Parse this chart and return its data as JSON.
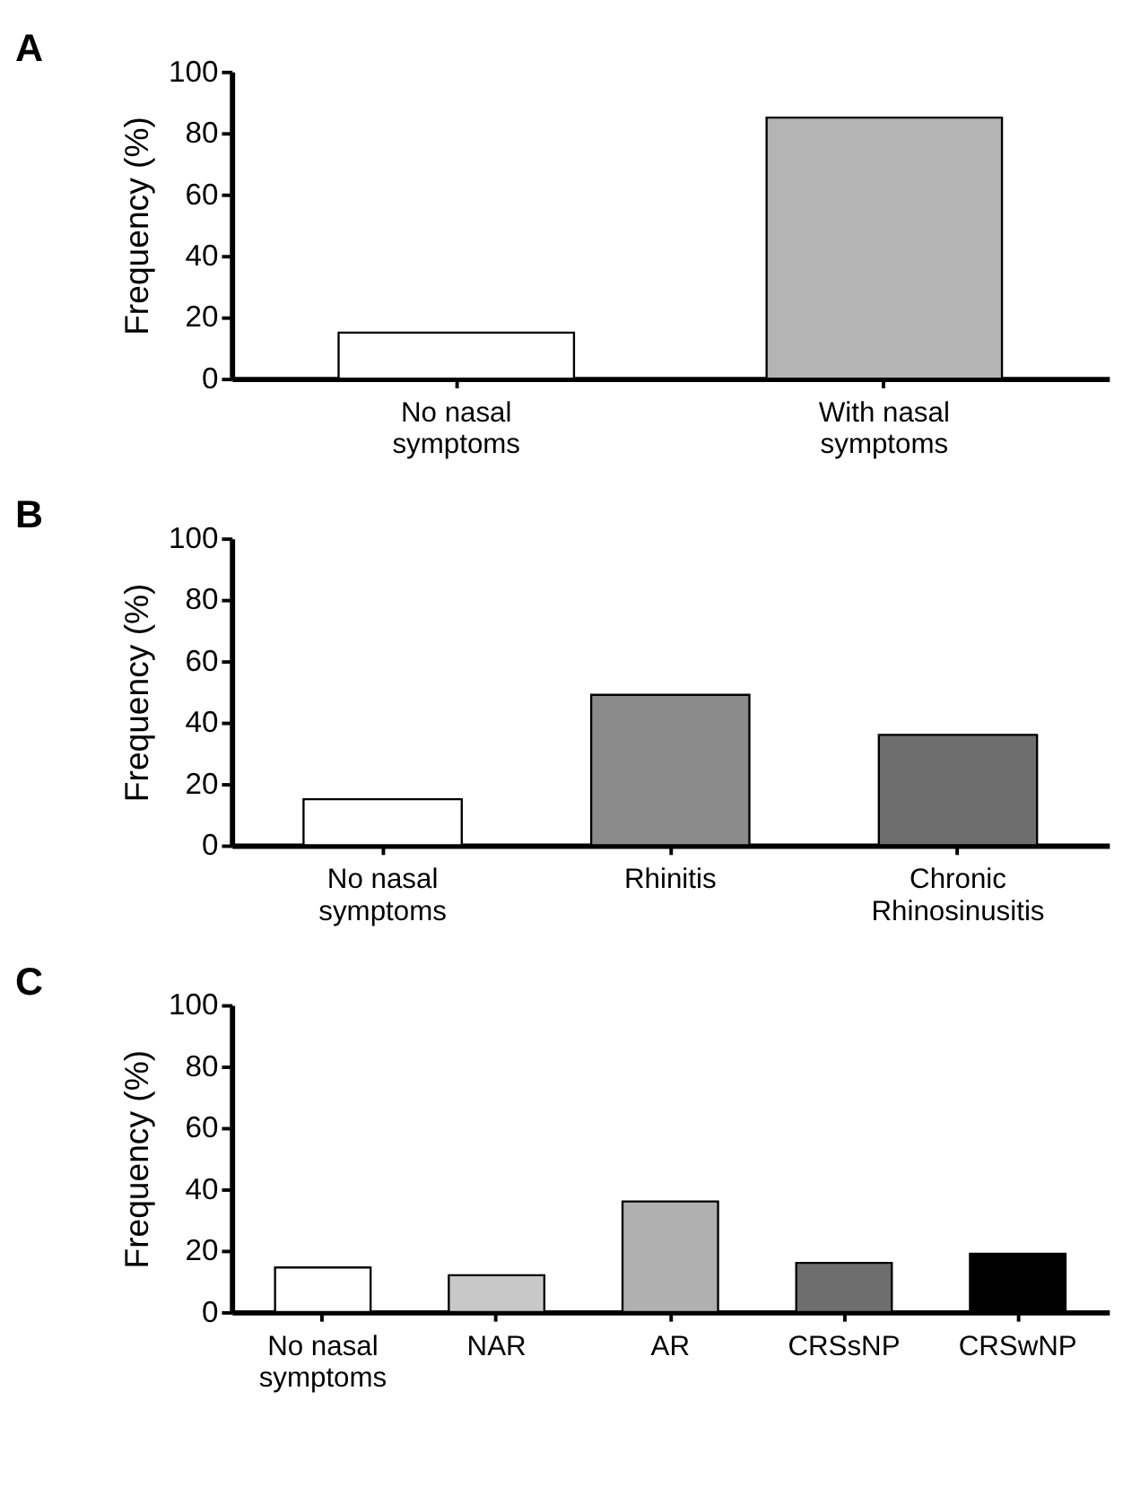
{
  "chart_data": [
    {
      "type": "bar",
      "title": "A",
      "ylabel": "Frequency (%)",
      "categories": [
        "No nasal symptoms",
        "With nasal symptoms"
      ],
      "values": [
        15,
        85
      ],
      "colors": [
        "#ffffff",
        "#b4b4b4"
      ],
      "ylim": [
        0,
        100
      ],
      "yticks": [
        0,
        20,
        40,
        60,
        80,
        100
      ],
      "grid": false,
      "legend": false
    },
    {
      "type": "bar",
      "title": "B",
      "ylabel": "Frequency (%)",
      "categories": [
        "No nasal symptoms",
        "Rhinitis",
        "Chronic Rhinosinusitis"
      ],
      "values": [
        15,
        49,
        36
      ],
      "colors": [
        "#ffffff",
        "#8a8a8a",
        "#6e6e6e"
      ],
      "ylim": [
        0,
        100
      ],
      "yticks": [
        0,
        20,
        40,
        60,
        80,
        100
      ],
      "grid": false,
      "legend": false
    },
    {
      "type": "bar",
      "title": "C",
      "ylabel": "Frequency (%)",
      "categories": [
        "No nasal symptoms",
        "NAR",
        "AR",
        "CRSsNP",
        "CRSwNP"
      ],
      "values": [
        14.5,
        12,
        36,
        16,
        19
      ],
      "colors": [
        "#ffffff",
        "#c8c8c8",
        "#b0b0b0",
        "#6e6e6e",
        "#000000"
      ],
      "ylim": [
        0,
        100
      ],
      "yticks": [
        0,
        20,
        40,
        60,
        80,
        100
      ],
      "grid": false,
      "legend": false
    }
  ]
}
